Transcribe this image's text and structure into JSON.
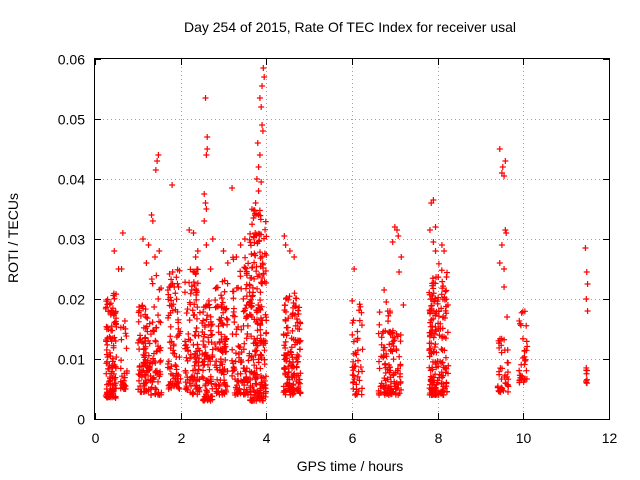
{
  "chart_data": {
    "type": "scatter",
    "title": "Day 254 of 2015, Rate Of TEC Index for receiver usal",
    "xlabel": "GPS time / hours",
    "ylabel": "ROTI / TECUs",
    "xlim": [
      0,
      12
    ],
    "ylim": [
      0,
      0.06
    ],
    "xticks": [
      0,
      2,
      4,
      6,
      8,
      10,
      12
    ],
    "xtick_labels": [
      "0",
      "2",
      "4",
      "6",
      "8",
      "10",
      "12"
    ],
    "yticks": [
      0,
      0.01,
      0.02,
      0.03,
      0.04,
      0.05,
      0.06
    ],
    "ytick_labels": [
      "0",
      "0.01",
      "0.02",
      "0.03",
      "0.04",
      "0.05",
      "0.06"
    ],
    "grid": true,
    "marker": "+",
    "marker_color": "#ff0000",
    "series": [
      {
        "name": "ROTI",
        "clusters": [
          {
            "x": [
              0.25,
              0.5
            ],
            "ylo": 0.0035,
            "yhi": 0.021,
            "n": 120,
            "extra": [
              [
                0.45,
                0.028
              ],
              [
                0.55,
                0.025
              ],
              [
                0.65,
                0.031
              ],
              [
                0.62,
                0.025
              ]
            ]
          },
          {
            "x": [
              0.6,
              0.75
            ],
            "ylo": 0.005,
            "yhi": 0.018,
            "n": 30,
            "extra": []
          },
          {
            "x": [
              1.0,
              1.3
            ],
            "ylo": 0.0045,
            "yhi": 0.019,
            "n": 90,
            "extra": [
              [
                1.12,
                0.03
              ],
              [
                1.25,
                0.029
              ],
              [
                1.32,
                0.034
              ],
              [
                1.35,
                0.033
              ],
              [
                1.42,
                0.0415
              ],
              [
                1.45,
                0.043
              ],
              [
                1.48,
                0.044
              ],
              [
                1.2,
                0.026
              ]
            ]
          },
          {
            "x": [
              1.3,
              1.55
            ],
            "ylo": 0.004,
            "yhi": 0.024,
            "n": 60,
            "extra": [
              [
                1.5,
                0.028
              ],
              [
                1.4,
                0.027
              ]
            ]
          },
          {
            "x": [
              1.7,
              2.0
            ],
            "ylo": 0.005,
            "yhi": 0.025,
            "n": 80,
            "extra": [
              [
                1.8,
                0.039
              ],
              [
                1.85,
                0.022
              ],
              [
                1.95,
                0.022
              ]
            ]
          },
          {
            "x": [
              2.1,
              2.45
            ],
            "ylo": 0.004,
            "yhi": 0.025,
            "n": 110,
            "extra": [
              [
                2.2,
                0.0315
              ],
              [
                2.3,
                0.031
              ],
              [
                2.35,
                0.027
              ],
              [
                2.4,
                0.028
              ]
            ]
          },
          {
            "x": [
              2.5,
              2.75
            ],
            "ylo": 0.003,
            "yhi": 0.02,
            "n": 90,
            "extra": [
              [
                2.58,
                0.0535
              ],
              [
                2.62,
                0.047
              ],
              [
                2.6,
                0.044
              ],
              [
                2.62,
                0.045
              ],
              [
                2.55,
                0.0375
              ],
              [
                2.58,
                0.036
              ],
              [
                2.6,
                0.035
              ],
              [
                2.55,
                0.033
              ],
              [
                2.6,
                0.029
              ],
              [
                2.7,
                0.025
              ],
              [
                2.75,
                0.03
              ]
            ]
          },
          {
            "x": [
              2.8,
              3.1
            ],
            "ylo": 0.004,
            "yhi": 0.024,
            "n": 100,
            "extra": [
              [
                3.0,
                0.028
              ],
              [
                3.1,
                0.026
              ]
            ]
          },
          {
            "x": [
              3.2,
              3.6
            ],
            "ylo": 0.004,
            "yhi": 0.027,
            "n": 110,
            "extra": [
              [
                3.2,
                0.0385
              ],
              [
                3.5,
                0.03
              ],
              [
                3.4,
                0.029
              ],
              [
                3.3,
                0.027
              ]
            ]
          },
          {
            "x": [
              3.6,
              4.0
            ],
            "ylo": 0.003,
            "yhi": 0.035,
            "n": 220,
            "extra": [
              [
                3.93,
                0.0585
              ],
              [
                3.95,
                0.057
              ],
              [
                3.9,
                0.0555
              ],
              [
                3.85,
                0.0535
              ],
              [
                3.88,
                0.052
              ],
              [
                3.9,
                0.049
              ],
              [
                3.92,
                0.048
              ],
              [
                3.8,
                0.046
              ],
              [
                3.85,
                0.044
              ],
              [
                3.82,
                0.042
              ],
              [
                3.78,
                0.04
              ],
              [
                3.82,
                0.038
              ],
              [
                3.75,
                0.036
              ],
              [
                3.88,
                0.0395
              ],
              [
                3.7,
                0.0335
              ],
              [
                3.74,
                0.031
              ]
            ]
          },
          {
            "x": [
              4.4,
              4.75
            ],
            "ylo": 0.004,
            "yhi": 0.021,
            "n": 130,
            "extra": [
              [
                4.42,
                0.0305
              ],
              [
                4.45,
                0.029
              ],
              [
                4.55,
                0.028
              ],
              [
                4.65,
                0.027
              ]
            ]
          },
          {
            "x": [
              4.75,
              4.8
            ],
            "ylo": 0.004,
            "yhi": 0.02,
            "n": 20,
            "extra": []
          },
          {
            "x": [
              6.0,
              6.25
            ],
            "ylo": 0.004,
            "yhi": 0.02,
            "n": 45,
            "extra": [
              [
                6.05,
                0.025
              ]
            ]
          },
          {
            "x": [
              6.6,
              6.95
            ],
            "ylo": 0.004,
            "yhi": 0.018,
            "n": 80,
            "extra": [
              [
                6.75,
                0.0215
              ],
              [
                6.8,
                0.0195
              ]
            ]
          },
          {
            "x": [
              6.9,
              7.15
            ],
            "ylo": 0.004,
            "yhi": 0.015,
            "n": 45,
            "extra": [
              [
                6.95,
                0.0295
              ],
              [
                7.0,
                0.032
              ],
              [
                7.05,
                0.0315
              ],
              [
                7.08,
                0.0305
              ],
              [
                7.1,
                0.0245
              ],
              [
                7.15,
                0.027
              ],
              [
                7.2,
                0.019
              ]
            ]
          },
          {
            "x": [
              7.8,
              8.0
            ],
            "ylo": 0.004,
            "yhi": 0.024,
            "n": 110,
            "extra": [
              [
                7.85,
                0.036
              ],
              [
                7.9,
                0.0365
              ],
              [
                7.95,
                0.032
              ],
              [
                7.82,
                0.0315
              ],
              [
                7.9,
                0.0295
              ],
              [
                7.95,
                0.028
              ]
            ]
          },
          {
            "x": [
              8.0,
              8.25
            ],
            "ylo": 0.004,
            "yhi": 0.026,
            "n": 80,
            "extra": [
              [
                8.1,
                0.029
              ],
              [
                8.15,
                0.028
              ]
            ]
          },
          {
            "x": [
              9.4,
              9.65
            ],
            "ylo": 0.0045,
            "yhi": 0.0135,
            "n": 40,
            "extra": [
              [
                9.45,
                0.045
              ],
              [
                9.5,
                0.041
              ],
              [
                9.55,
                0.0405
              ],
              [
                9.58,
                0.043
              ],
              [
                9.52,
                0.042
              ],
              [
                9.5,
                0.029
              ],
              [
                9.45,
                0.026
              ],
              [
                9.55,
                0.025
              ],
              [
                9.6,
                0.031
              ],
              [
                9.58,
                0.0315
              ],
              [
                9.55,
                0.022
              ],
              [
                9.62,
                0.017
              ]
            ]
          },
          {
            "x": [
              9.9,
              10.1
            ],
            "ylo": 0.006,
            "yhi": 0.018,
            "n": 35,
            "extra": []
          },
          {
            "x": [
              11.45,
              11.5
            ],
            "ylo": 0.0055,
            "yhi": 0.0095,
            "n": 8,
            "extra": [
              [
                11.45,
                0.0285
              ],
              [
                11.48,
                0.0245
              ],
              [
                11.5,
                0.0225
              ],
              [
                11.47,
                0.02
              ],
              [
                11.5,
                0.018
              ]
            ]
          }
        ]
      }
    ]
  }
}
